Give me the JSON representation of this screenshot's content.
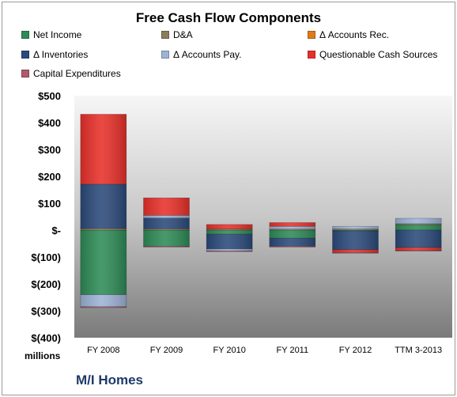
{
  "chart_data": {
    "type": "bar",
    "stacked": true,
    "title": "Free Cash Flow Components",
    "categories": [
      "FY 2008",
      "FY 2009",
      "FY 2010",
      "FY 2011",
      "FY 2012",
      "TTM 3-2013"
    ],
    "y_ticks": [
      "$500",
      "$400",
      "$300",
      "$200",
      "$100",
      "$-",
      "$(100)",
      "$(200)",
      "$(300)",
      "$(400)"
    ],
    "ylim": [
      -400,
      500
    ],
    "y_unit_label": "millions",
    "legend_position": "top",
    "grid": false,
    "series": [
      {
        "name": "Net Income",
        "color": "#2e8b57",
        "values": [
          -240,
          -60,
          -15,
          -30,
          -3,
          20
        ]
      },
      {
        "name": "D&A",
        "color": "#8b7d5a",
        "values": [
          6,
          5,
          4,
          4,
          4,
          4
        ]
      },
      {
        "name": "Δ Accounts Rec.",
        "color": "#e07b1a",
        "values": [
          0,
          0,
          0,
          0,
          0,
          0
        ]
      },
      {
        "name": "Δ Inventories",
        "color": "#2b4a7a",
        "values": [
          165,
          40,
          -55,
          -30,
          -70,
          -65
        ]
      },
      {
        "name": "Δ Accounts Pay.",
        "color": "#9db3d6",
        "values": [
          -45,
          10,
          -7,
          10,
          10,
          20
        ]
      },
      {
        "name": "Questionable Cash Sources",
        "color": "#e8302a",
        "values": [
          260,
          65,
          17,
          14,
          -10,
          -10
        ]
      },
      {
        "name": "Capital Expenditures",
        "color": "#b05a6a",
        "values": [
          -3,
          -3,
          -3,
          -3,
          -3,
          -3
        ]
      }
    ]
  },
  "footer": {
    "company": "M/I Homes"
  }
}
